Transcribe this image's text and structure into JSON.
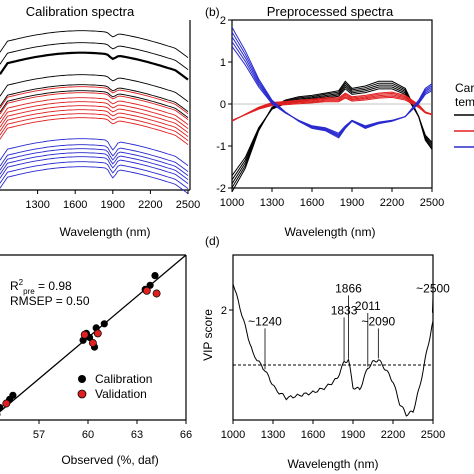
{
  "panel_labels": {
    "b": "(b)",
    "d": "(d)"
  },
  "legend_partial": {
    "line1": "Car",
    "line2": "tem"
  },
  "chart_data": [
    {
      "panel": "a",
      "type": "line",
      "title": "Calibration spectra",
      "xlabel": "Wavelength (nm)",
      "ylabel": "",
      "xlim": [
        1000,
        2500
      ],
      "xticks": [
        1300,
        1600,
        1900,
        2200,
        2500
      ],
      "series": [
        {
          "color": "#000000",
          "values": []
        },
        {
          "color": "#e02020",
          "values": []
        },
        {
          "color": "#2a2ad0",
          "values": []
        }
      ]
    },
    {
      "panel": "b",
      "type": "line",
      "title": "Preprocessed spectra",
      "xlabel": "Wavelength (nm)",
      "ylabel": "",
      "xlim": [
        1000,
        2500
      ],
      "ylim": [
        -2,
        2
      ],
      "xticks": [
        1000,
        1300,
        1600,
        1900,
        2200,
        2500
      ],
      "yticks": [
        -2,
        -1,
        0,
        1,
        2
      ],
      "series": [
        {
          "color": "#000000",
          "x": [
            1000,
            1100,
            1200,
            1300,
            1400,
            1500,
            1600,
            1700,
            1800,
            1850,
            1900,
            2000,
            2100,
            2200,
            2300,
            2400,
            2450,
            2500
          ],
          "values": [
            -1.9,
            -1.4,
            -0.6,
            -0.1,
            0.05,
            0.12,
            0.15,
            0.2,
            0.25,
            0.45,
            0.3,
            0.35,
            0.45,
            0.45,
            0.3,
            -0.3,
            -0.8,
            -1.0
          ]
        },
        {
          "color": "#e02020",
          "x": [
            1000,
            1100,
            1200,
            1300,
            1400,
            1500,
            1600,
            1700,
            1800,
            1850,
            1900,
            2000,
            2100,
            2200,
            2300,
            2400,
            2450,
            2500
          ],
          "values": [
            -0.4,
            -0.25,
            -0.1,
            0.0,
            0.02,
            0.05,
            0.07,
            0.1,
            0.1,
            0.2,
            0.12,
            0.15,
            0.2,
            0.22,
            0.15,
            -0.05,
            -0.2,
            -0.25
          ]
        },
        {
          "color": "#2a2ad0",
          "x": [
            1000,
            1100,
            1200,
            1300,
            1400,
            1500,
            1600,
            1700,
            1800,
            1850,
            1900,
            2000,
            2100,
            2200,
            2300,
            2400,
            2450,
            2500
          ],
          "values": [
            1.6,
            1.1,
            0.5,
            0.05,
            -0.2,
            -0.4,
            -0.55,
            -0.6,
            -0.75,
            -0.55,
            -0.4,
            -0.55,
            -0.45,
            -0.4,
            -0.3,
            0.05,
            0.3,
            0.4
          ]
        }
      ]
    },
    {
      "panel": "c",
      "type": "scatter",
      "title": "",
      "xlabel": "Observed (%, daf)",
      "ylabel": "",
      "xlim": [
        54,
        66
      ],
      "ylim": [
        54,
        66
      ],
      "xticks": [
        57,
        60,
        63,
        66
      ],
      "annotations": {
        "r2_main": "R",
        "r2_sup": "2",
        "r2_sub": "pre",
        "r2_value": " = 0.98",
        "rmsep": "RMSEP = 0.50"
      },
      "legend": [
        "Calibration",
        "Validation"
      ],
      "series": [
        {
          "name": "Calibration",
          "color": "#000000",
          "x": [
            54.2,
            54.6,
            55.2,
            55.4,
            59.7,
            59.9,
            60.1,
            60.4,
            60.5,
            61.0,
            63.5,
            63.8,
            64.1
          ],
          "values": [
            54.3,
            54.9,
            55.5,
            55.8,
            59.8,
            60.3,
            60.0,
            59.3,
            60.7,
            61.0,
            63.5,
            63.8,
            64.5
          ]
        },
        {
          "name": "Validation",
          "color": "#e02020",
          "x": [
            54.4,
            55.0,
            59.8,
            60.3,
            60.6,
            63.6,
            64.2
          ],
          "values": [
            54.4,
            55.2,
            60.2,
            59.6,
            60.3,
            63.4,
            63.2
          ]
        }
      ]
    },
    {
      "panel": "d",
      "type": "line",
      "title": "",
      "xlabel": "Wavelength (nm)",
      "ylabel": "VIP score",
      "xlim": [
        1000,
        2500
      ],
      "ylim": [
        0,
        3
      ],
      "xticks": [
        1000,
        1300,
        1600,
        1900,
        2200,
        2500
      ],
      "yticks": [
        2
      ],
      "threshold": 1,
      "annotations": [
        "~1240",
        "1833",
        "1866",
        "2011",
        "~2090",
        "~2500"
      ],
      "series": [
        {
          "color": "#000000",
          "x": [
            1000,
            1080,
            1150,
            1240,
            1320,
            1400,
            1500,
            1600,
            1700,
            1780,
            1833,
            1866,
            1900,
            1950,
            2011,
            2050,
            2090,
            2150,
            2200,
            2250,
            2300,
            2350,
            2400,
            2450,
            2500
          ],
          "values": [
            2.5,
            1.8,
            1.2,
            0.9,
            0.55,
            0.4,
            0.45,
            0.5,
            0.6,
            0.75,
            1.05,
            1.1,
            0.6,
            0.55,
            0.95,
            1.05,
            1.1,
            0.9,
            0.7,
            0.3,
            0.1,
            0.15,
            0.6,
            1.2,
            1.8
          ]
        }
      ]
    }
  ]
}
